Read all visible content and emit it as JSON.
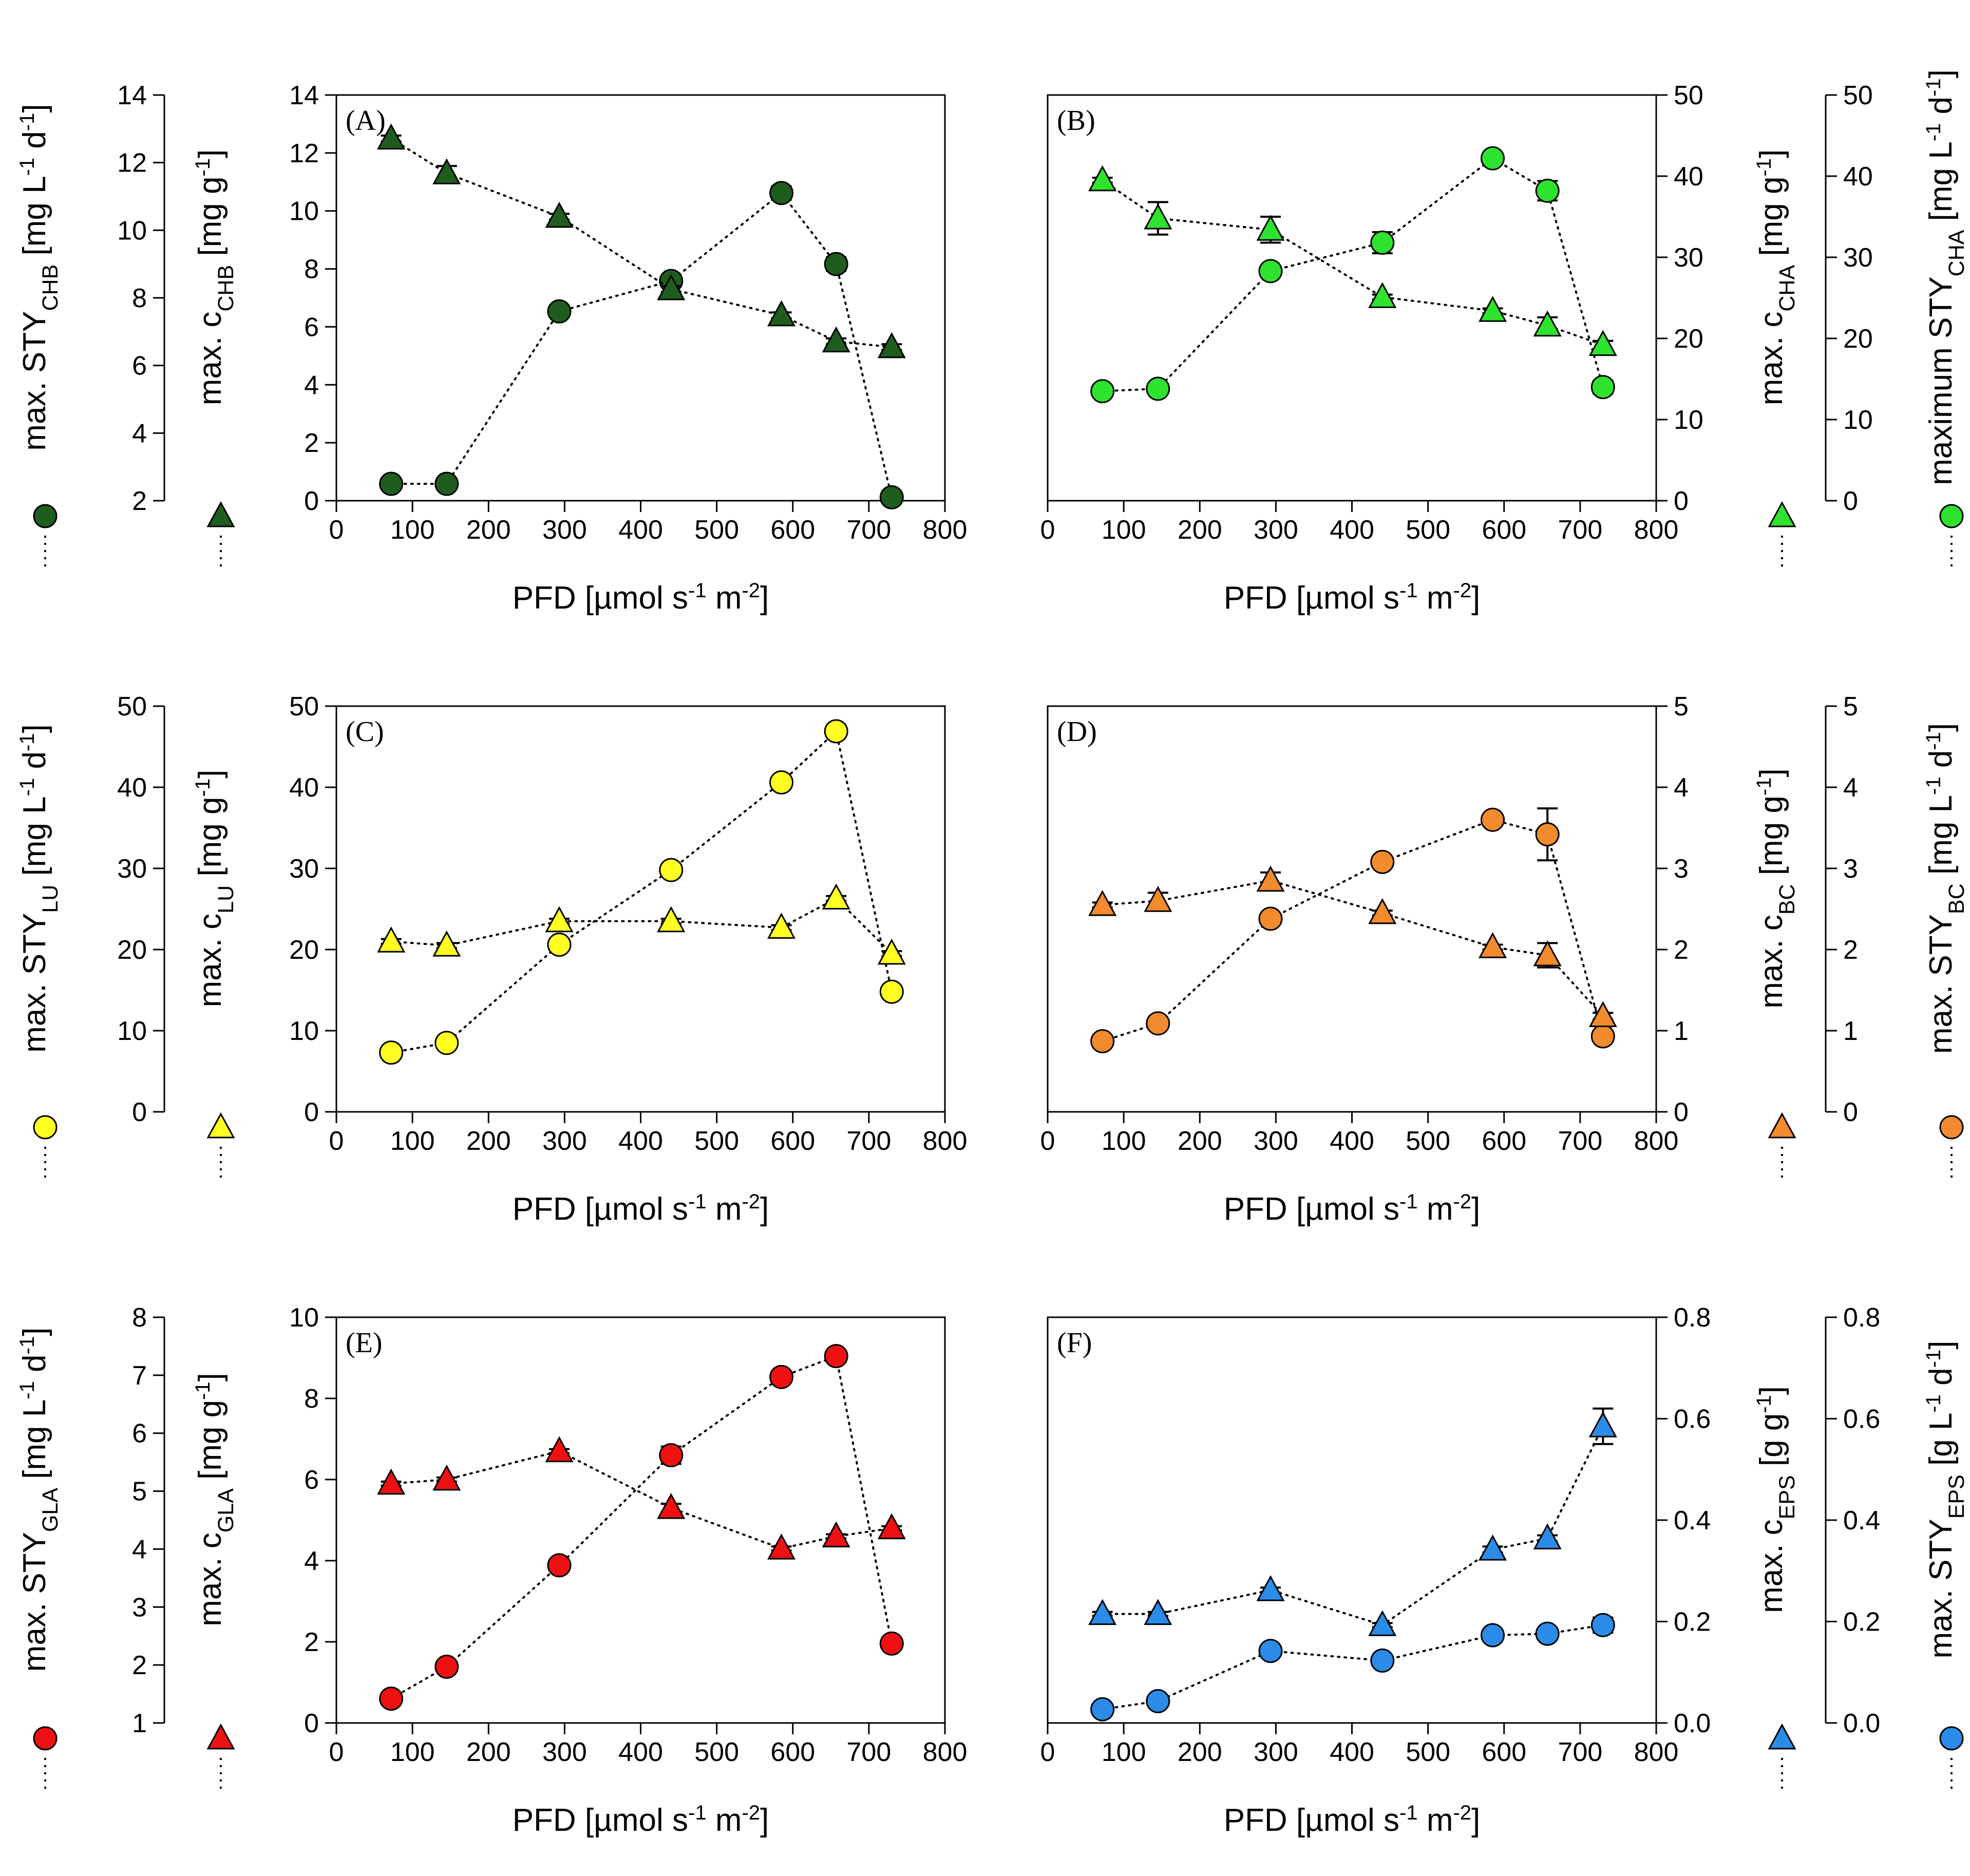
{
  "x_axis": {
    "label": "PFD [µmol s⁻¹ m⁻²]",
    "ticks": [
      0,
      100,
      200,
      300,
      400,
      500,
      600,
      700,
      800
    ],
    "range": [
      0,
      800
    ]
  },
  "chart_data": [
    {
      "type": "scatter",
      "panel": "(A)",
      "title": "",
      "xlabel": "PFD [µmol s⁻¹ m⁻²]",
      "color": "#1e5d1e",
      "axes": {
        "sty": {
          "label": "max. STY",
          "sub": "CHB",
          "suffix": " [mg L⁻¹ d⁻¹]",
          "range": [
            2,
            14
          ],
          "ticks": [
            "2",
            "4",
            "6",
            "8",
            "10",
            "12",
            "14"
          ]
        },
        "c": {
          "label": "max. c",
          "sub": "CHB",
          "suffix": " [mg g⁻¹]",
          "range": [
            0,
            14
          ],
          "ticks": [
            "0",
            "2",
            "4",
            "6",
            "8",
            "10",
            "12",
            "14"
          ]
        }
      },
      "series": [
        {
          "name": "STY",
          "marker": "circle",
          "axis": "sty",
          "x": [
            72,
            145,
            293,
            440,
            585,
            657,
            730
          ],
          "y": [
            2.5,
            2.5,
            7.6,
            8.5,
            11.1,
            9.0,
            2.1
          ],
          "err": [
            0.05,
            0.05,
            0.05,
            0.15,
            0.2,
            0.2,
            0.1
          ]
        },
        {
          "name": "c",
          "marker": "triangle",
          "axis": "c",
          "x": [
            72,
            145,
            293,
            440,
            585,
            657,
            730
          ],
          "y": [
            12.5,
            11.3,
            9.8,
            7.3,
            6.4,
            5.5,
            5.3
          ],
          "err": [
            0.1,
            0.25,
            0.1,
            0.1,
            0.1,
            0.1,
            0.1
          ]
        }
      ]
    },
    {
      "type": "scatter",
      "panel": "(B)",
      "title": "",
      "xlabel": "PFD [µmol s⁻¹ m⁻²]",
      "color": "#2ee32e",
      "axes": {
        "c": {
          "label": "max. c",
          "sub": "CHA",
          "suffix": " [mg g⁻¹]",
          "range": [
            0,
            50
          ],
          "ticks": [
            "0",
            "10",
            "20",
            "30",
            "40",
            "50"
          ]
        },
        "sty": {
          "label": "maximum STY",
          "sub": "CHA",
          "suffix": " [mg L⁻¹ d⁻¹]",
          "range": [
            0,
            50
          ],
          "ticks": [
            "0",
            "10",
            "20",
            "30",
            "40",
            "50"
          ]
        }
      },
      "series": [
        {
          "name": "STY",
          "marker": "circle",
          "axis": "sty",
          "x": [
            72,
            145,
            293,
            440,
            585,
            657,
            730
          ],
          "y": [
            13.5,
            13.8,
            28.3,
            31.8,
            42.2,
            38.2,
            14.0
          ],
          "err": [
            0.3,
            0.3,
            0.3,
            1.3,
            0.3,
            1.2,
            0.8
          ]
        },
        {
          "name": "c",
          "marker": "triangle",
          "axis": "c",
          "x": [
            72,
            145,
            293,
            440,
            585,
            657,
            730
          ],
          "y": [
            39.5,
            34.8,
            33.4,
            25.1,
            23.4,
            21.6,
            19.2
          ],
          "err": [
            0.3,
            2.0,
            1.6,
            0.3,
            0.3,
            1.0,
            0.5
          ]
        }
      ]
    },
    {
      "type": "scatter",
      "panel": "(C)",
      "title": "",
      "xlabel": "PFD [µmol s⁻¹ m⁻²]",
      "color": "#ffff22",
      "axes": {
        "sty": {
          "label": "max. STY",
          "sub": "LU",
          "suffix": " [mg L⁻¹ d⁻¹]",
          "range": [
            0,
            50
          ],
          "ticks": [
            "0",
            "10",
            "20",
            "30",
            "40",
            "50"
          ]
        },
        "c": {
          "label": "max. c",
          "sub": "LU",
          "suffix": " [mg g⁻¹]",
          "range": [
            0,
            50
          ],
          "ticks": [
            "0",
            "10",
            "20",
            "30",
            "40",
            "50"
          ]
        }
      },
      "series": [
        {
          "name": "STY",
          "marker": "circle",
          "axis": "sty",
          "x": [
            72,
            145,
            293,
            440,
            585,
            657,
            730
          ],
          "y": [
            7.3,
            8.5,
            20.6,
            29.8,
            40.6,
            46.9,
            14.8
          ],
          "err": [
            0.2,
            0.2,
            0.3,
            0.3,
            0.3,
            0.3,
            0.3
          ]
        },
        {
          "name": "c",
          "marker": "triangle",
          "axis": "c",
          "x": [
            72,
            145,
            293,
            440,
            585,
            657,
            730
          ],
          "y": [
            21.0,
            20.5,
            23.5,
            23.5,
            22.7,
            26.3,
            19.5
          ],
          "err": [
            0.3,
            0.3,
            0.3,
            0.3,
            0.3,
            0.3,
            0.3
          ]
        }
      ]
    },
    {
      "type": "scatter",
      "panel": "(D)",
      "title": "",
      "xlabel": "PFD [µmol s⁻¹ m⁻²]",
      "color": "#f28a2e",
      "axes": {
        "c": {
          "label": "max. c",
          "sub": "BC",
          "suffix": " [mg g⁻¹]",
          "range": [
            0,
            5
          ],
          "ticks": [
            "0",
            "1",
            "2",
            "3",
            "4",
            "5"
          ]
        },
        "sty": {
          "label": "max. STY",
          "sub": "BC",
          "suffix": " [mg L⁻¹ d⁻¹]",
          "range": [
            0,
            5
          ],
          "ticks": [
            "0",
            "1",
            "2",
            "3",
            "4",
            "5"
          ]
        }
      },
      "series": [
        {
          "name": "STY",
          "marker": "circle",
          "axis": "sty",
          "x": [
            72,
            145,
            293,
            440,
            585,
            657,
            730
          ],
          "y": [
            0.87,
            1.09,
            2.38,
            3.08,
            3.6,
            3.42,
            0.93
          ],
          "err": [
            0.02,
            0.02,
            0.03,
            0.03,
            0.04,
            0.32,
            0.05
          ]
        },
        {
          "name": "c",
          "marker": "triangle",
          "axis": "c",
          "x": [
            72,
            145,
            293,
            440,
            585,
            657,
            730
          ],
          "y": [
            2.55,
            2.6,
            2.85,
            2.45,
            2.03,
            1.93,
            1.18
          ],
          "err": [
            0.03,
            0.1,
            0.1,
            0.03,
            0.03,
            0.15,
            0.04
          ]
        }
      ]
    },
    {
      "type": "scatter",
      "panel": "(E)",
      "title": "",
      "xlabel": "PFD [µmol s⁻¹ m⁻²]",
      "color": "#ee1111",
      "axes": {
        "sty": {
          "label": "max. STY",
          "sub": "GLA",
          "suffix": " [mg L⁻¹ d⁻¹]",
          "range": [
            1,
            8
          ],
          "ticks": [
            "1",
            "2",
            "3",
            "4",
            "5",
            "6",
            "7",
            "8"
          ]
        },
        "c": {
          "label": "max. c",
          "sub": "GLA",
          "suffix": " [mg g⁻¹]",
          "range": [
            0,
            10
          ],
          "ticks": [
            "0",
            "2",
            "4",
            "6",
            "8",
            "10"
          ]
        }
      },
      "series": [
        {
          "name": "STY",
          "marker": "circle",
          "axis": "sty",
          "x": [
            72,
            145,
            293,
            440,
            585,
            657,
            730
          ],
          "y": [
            1.42,
            1.97,
            3.72,
            5.62,
            6.97,
            7.33,
            2.37
          ],
          "err": [
            0.03,
            0.03,
            0.05,
            0.15,
            0.05,
            0.05,
            0.05
          ]
        },
        {
          "name": "c",
          "marker": "triangle",
          "axis": "c",
          "x": [
            72,
            145,
            293,
            440,
            585,
            657,
            730
          ],
          "y": [
            5.9,
            6.0,
            6.7,
            5.3,
            4.3,
            4.6,
            4.8
          ],
          "err": [
            0.05,
            0.05,
            0.05,
            0.1,
            0.05,
            0.05,
            0.05
          ]
        }
      ]
    },
    {
      "type": "scatter",
      "panel": "(F)",
      "title": "",
      "xlabel": "PFD [µmol s⁻¹ m⁻²]",
      "color": "#2a8ce8",
      "axes": {
        "c": {
          "label": "max. c",
          "sub": "EPS",
          "suffix": " [g g⁻¹]",
          "range": [
            0,
            0.8
          ],
          "ticks": [
            "0.0",
            "0.2",
            "0.4",
            "0.6",
            "0.8"
          ]
        },
        "sty": {
          "label": "max. STY",
          "sub": "EPS",
          "suffix": " [g L⁻¹ d⁻¹]",
          "range": [
            0,
            0.8
          ],
          "ticks": [
            "0.0",
            "0.2",
            "0.4",
            "0.6",
            "0.8"
          ]
        }
      },
      "series": [
        {
          "name": "STY",
          "marker": "circle",
          "axis": "sty",
          "x": [
            72,
            145,
            293,
            440,
            585,
            657,
            730
          ],
          "y": [
            0.027,
            0.043,
            0.142,
            0.123,
            0.173,
            0.176,
            0.193
          ],
          "err": [
            0.003,
            0.003,
            0.004,
            0.004,
            0.006,
            0.006,
            0.015
          ]
        },
        {
          "name": "c",
          "marker": "triangle",
          "axis": "c",
          "x": [
            72,
            145,
            293,
            440,
            585,
            657,
            730
          ],
          "y": [
            0.215,
            0.215,
            0.262,
            0.193,
            0.342,
            0.364,
            0.585
          ],
          "err": [
            0.004,
            0.004,
            0.005,
            0.004,
            0.006,
            0.006,
            0.035
          ]
        }
      ]
    }
  ]
}
